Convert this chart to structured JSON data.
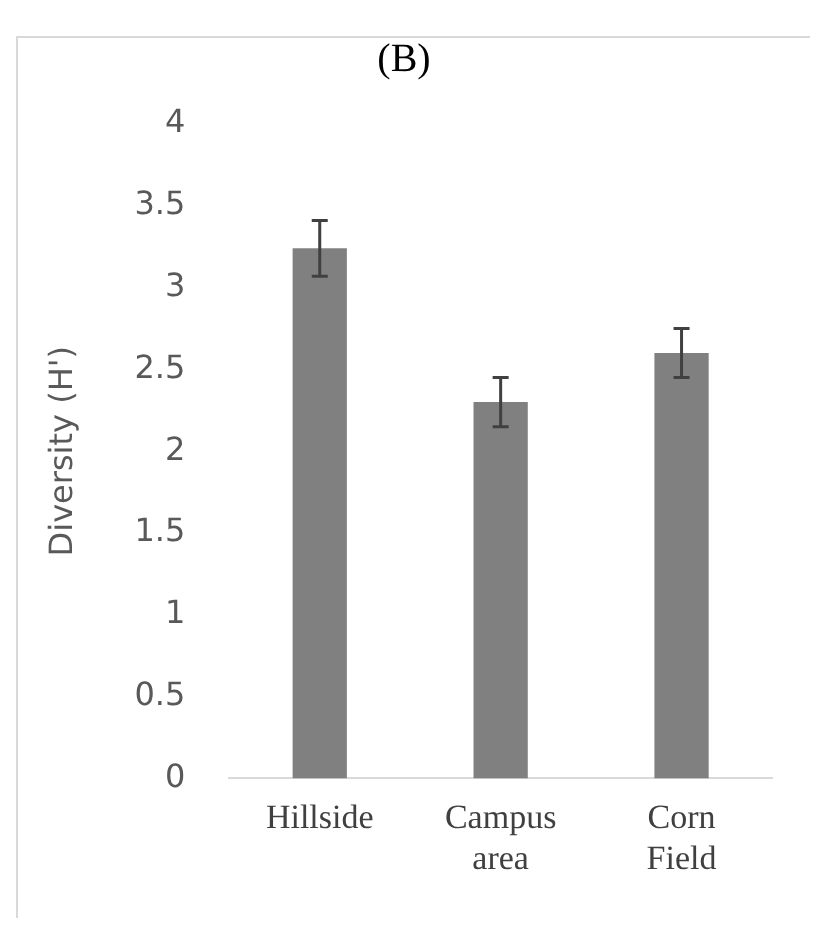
{
  "chart_data": {
    "type": "bar",
    "title": "(B)",
    "ylabel": "Diversity (H')",
    "categories": [
      "Hillside",
      "Campus area",
      "Corn Field"
    ],
    "values": [
      3.24,
      2.3,
      2.6
    ],
    "errors": [
      0.17,
      0.15,
      0.15
    ],
    "color": "#808080",
    "ylim": [
      0,
      4
    ],
    "yticks": [
      0,
      0.5,
      1,
      1.5,
      2,
      2.5,
      3,
      3.5,
      4
    ],
    "grid": false,
    "legend": false
  }
}
